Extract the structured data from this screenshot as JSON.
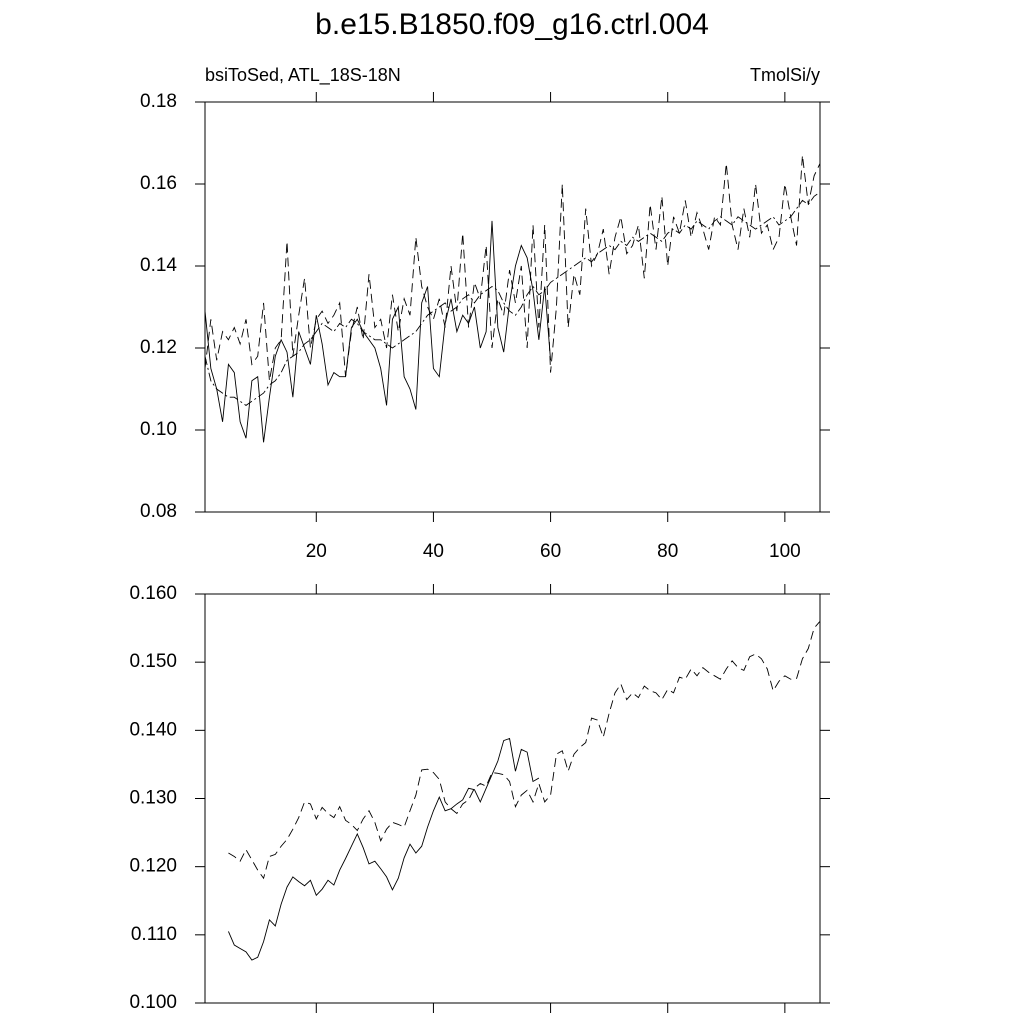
{
  "chart_data": [
    {
      "type": "line",
      "title": "b.e15.B1850.f09_g16.ctrl.004",
      "subtitle_left": "bsiToSed, ATL_18S-18N",
      "subtitle_right": "TmolSi/y",
      "x": [
        1,
        2,
        3,
        4,
        5,
        6,
        7,
        8,
        9,
        10,
        11,
        12,
        13,
        14,
        15,
        16,
        17,
        18,
        19,
        20,
        21,
        22,
        23,
        24,
        25,
        26,
        27,
        28,
        29,
        30,
        31,
        32,
        33,
        34,
        35,
        36,
        37,
        38,
        39,
        40,
        41,
        42,
        43,
        44,
        45,
        46,
        47,
        48,
        49,
        50,
        51,
        52,
        53,
        54,
        55,
        56,
        57,
        58,
        59,
        60,
        61,
        62,
        63,
        64,
        65,
        66,
        67,
        68,
        69,
        70,
        71,
        72,
        73,
        74,
        75,
        76,
        77,
        78,
        79,
        80,
        81,
        82,
        83,
        84,
        85,
        86,
        87,
        88,
        89,
        90,
        91,
        92,
        93,
        94,
        95,
        96,
        97,
        98,
        99,
        100,
        101,
        102,
        103,
        104,
        105,
        106
      ],
      "xlim": [
        1,
        106
      ],
      "xticks": [
        20,
        40,
        60,
        80,
        100
      ],
      "xtick_labels": true,
      "ylim": [
        0.08,
        0.18
      ],
      "yticks": [
        {
          "value": 0.08,
          "label": "0.08"
        },
        {
          "value": 0.1,
          "label": "0.10"
        },
        0.12,
        0.14,
        0.16,
        0.18
      ],
      "series": [
        {
          "color": "#000000",
          "dash": "solid",
          "values": [
            0.129,
            0.115,
            0.11,
            0.102,
            0.116,
            0.114,
            0.102,
            0.098,
            0.112,
            0.113,
            0.097,
            0.108,
            0.118,
            0.122,
            0.119,
            0.108,
            0.124,
            0.12,
            0.116,
            0.128,
            0.121,
            0.111,
            0.114,
            0.113,
            0.113,
            0.125,
            0.127,
            0.124,
            0.122,
            0.12,
            0.115,
            0.106,
            0.127,
            0.13,
            0.113,
            0.11,
            0.105,
            0.131,
            0.135,
            0.115,
            0.113,
            0.126,
            0.132,
            0.124,
            0.128,
            0.126,
            0.13,
            0.12,
            0.124,
            0.151,
            0.125,
            0.119,
            0.131,
            0.14,
            0.145,
            0.142,
            0.134,
            0.122,
            0.135,
            0.117,
            null,
            null,
            null,
            null,
            null,
            null,
            null,
            null,
            null,
            null,
            null,
            null,
            null,
            null,
            null,
            null,
            null,
            null,
            null,
            null,
            null,
            null,
            null,
            null,
            null,
            null,
            null,
            null,
            null,
            null,
            null,
            null,
            null,
            null,
            null,
            null,
            null,
            null,
            null,
            null,
            null,
            null,
            null,
            null,
            null,
            null
          ]
        },
        {
          "color": "#000000",
          "dash": "dashed",
          "values": [
            0.115,
            0.127,
            0.117,
            0.124,
            0.122,
            0.125,
            0.121,
            0.127,
            0.116,
            0.118,
            0.131,
            0.112,
            0.12,
            0.122,
            0.146,
            0.118,
            0.128,
            0.137,
            0.12,
            0.127,
            0.129,
            0.126,
            0.128,
            0.131,
            0.113,
            0.124,
            0.13,
            0.122,
            0.138,
            0.125,
            0.127,
            0.12,
            0.133,
            0.124,
            0.132,
            0.128,
            0.147,
            0.135,
            0.13,
            0.127,
            0.132,
            0.125,
            0.14,
            0.129,
            0.148,
            0.125,
            0.136,
            0.132,
            0.145,
            0.12,
            0.132,
            0.128,
            0.139,
            0.131,
            0.14,
            0.12,
            0.15,
            0.125,
            0.15,
            0.114,
            0.13,
            0.16,
            0.125,
            0.138,
            0.133,
            0.154,
            0.14,
            0.143,
            0.149,
            0.138,
            0.147,
            0.152,
            0.143,
            0.145,
            0.15,
            0.137,
            0.155,
            0.144,
            0.157,
            0.14,
            0.152,
            0.148,
            0.156,
            0.147,
            0.153,
            0.149,
            0.144,
            0.152,
            0.15,
            0.165,
            0.15,
            0.144,
            0.154,
            0.147,
            0.16,
            0.148,
            0.15,
            0.144,
            0.147,
            0.16,
            0.152,
            0.145,
            0.167,
            0.155,
            0.162,
            0.165
          ]
        },
        {
          "color": "#000000",
          "dash": "dashdot",
          "values": [
            0.118,
            0.112,
            0.11,
            0.109,
            0.108,
            0.108,
            0.107,
            0.106,
            0.107,
            0.108,
            0.109,
            0.111,
            0.112,
            0.114,
            0.117,
            0.118,
            0.119,
            0.121,
            0.122,
            0.124,
            0.126,
            0.125,
            0.124,
            0.126,
            0.125,
            0.127,
            0.126,
            0.124,
            0.123,
            0.122,
            0.122,
            0.121,
            0.12,
            0.121,
            0.122,
            0.123,
            0.124,
            0.126,
            0.128,
            0.129,
            0.13,
            0.131,
            0.129,
            0.13,
            0.132,
            0.133,
            0.131,
            0.133,
            0.134,
            0.135,
            0.134,
            0.131,
            0.129,
            0.128,
            0.13,
            0.133,
            0.135,
            0.133,
            0.134,
            0.136,
            0.137,
            0.138,
            0.139,
            0.14,
            0.141,
            0.142,
            0.141,
            0.143,
            0.144,
            0.145,
            0.144,
            0.146,
            0.145,
            0.147,
            0.146,
            0.147,
            0.148,
            0.147,
            0.146,
            0.148,
            0.149,
            0.148,
            0.15,
            0.149,
            0.151,
            0.15,
            0.149,
            0.151,
            0.152,
            0.151,
            0.15,
            0.152,
            0.151,
            0.15,
            0.149,
            0.15,
            0.151,
            0.152,
            0.15,
            0.151,
            0.152,
            0.154,
            0.156,
            0.155,
            0.157,
            0.158
          ]
        }
      ]
    },
    {
      "type": "line",
      "x": [
        1,
        2,
        3,
        4,
        5,
        6,
        7,
        8,
        9,
        10,
        11,
        12,
        13,
        14,
        15,
        16,
        17,
        18,
        19,
        20,
        21,
        22,
        23,
        24,
        25,
        26,
        27,
        28,
        29,
        30,
        31,
        32,
        33,
        34,
        35,
        36,
        37,
        38,
        39,
        40,
        41,
        42,
        43,
        44,
        45,
        46,
        47,
        48,
        49,
        50,
        51,
        52,
        53,
        54,
        55,
        56,
        57,
        58,
        59,
        60,
        61,
        62,
        63,
        64,
        65,
        66,
        67,
        68,
        69,
        70,
        71,
        72,
        73,
        74,
        75,
        76,
        77,
        78,
        79,
        80,
        81,
        82,
        83,
        84,
        85,
        86,
        87,
        88,
        89,
        90,
        91,
        92,
        93,
        94,
        95,
        96,
        97,
        98,
        99,
        100,
        101,
        102,
        103,
        104,
        105,
        106
      ],
      "xlim": [
        1,
        106
      ],
      "xticks": [
        20,
        40,
        60,
        80,
        100
      ],
      "xtick_labels": false,
      "ylim": [
        0.1,
        0.16
      ],
      "yticks": [
        {
          "value": 0.1,
          "label": "0.100"
        },
        {
          "value": 0.11,
          "label": "0.110"
        },
        {
          "value": 0.12,
          "label": "0.120"
        },
        {
          "value": 0.13,
          "label": "0.130"
        },
        {
          "value": 0.14,
          "label": "0.140"
        },
        {
          "value": 0.15,
          "label": "0.150"
        },
        {
          "value": 0.16,
          "label": "0.160"
        }
      ],
      "series": [
        {
          "color": "#000000",
          "dash": "solid",
          "values": [
            null,
            null,
            null,
            null,
            0.1105,
            0.1085,
            0.108,
            0.1075,
            0.1063,
            0.1067,
            0.109,
            0.1122,
            0.1113,
            0.1145,
            0.117,
            0.1185,
            0.1178,
            0.1172,
            0.118,
            0.1158,
            0.1167,
            0.118,
            0.1173,
            0.1195,
            0.1212,
            0.123,
            0.1248,
            0.1228,
            0.1204,
            0.1208,
            0.1197,
            0.1185,
            0.1166,
            0.1183,
            0.1213,
            0.1233,
            0.122,
            0.123,
            0.1258,
            0.1282,
            0.1302,
            0.1282,
            0.1285,
            0.1292,
            0.1298,
            0.1315,
            0.1313,
            0.1295,
            0.1315,
            0.1335,
            0.1355,
            0.1385,
            0.1388,
            0.134,
            0.1372,
            0.1368,
            0.1325,
            0.133,
            null,
            null,
            null,
            null,
            null,
            null,
            null,
            null,
            null,
            null,
            null,
            null,
            null,
            null,
            null,
            null,
            null,
            null,
            null,
            null,
            null,
            null,
            null,
            null,
            null,
            null,
            null,
            null,
            null,
            null,
            null,
            null,
            null,
            null,
            null,
            null,
            null,
            null,
            null,
            null,
            null,
            null,
            null,
            null,
            null,
            null,
            null,
            null
          ]
        },
        {
          "color": "#000000",
          "dash": "dashed",
          "values": [
            null,
            null,
            null,
            null,
            0.122,
            0.1215,
            0.1208,
            0.1225,
            0.121,
            0.1195,
            0.1183,
            0.1215,
            0.1218,
            0.123,
            0.124,
            0.1255,
            0.1272,
            0.1295,
            0.1292,
            0.127,
            0.1287,
            0.1278,
            0.1272,
            0.1288,
            0.1268,
            0.1262,
            0.1253,
            0.127,
            0.1282,
            0.1265,
            0.1238,
            0.1255,
            0.1265,
            0.1262,
            0.1258,
            0.1282,
            0.1305,
            0.1342,
            0.1343,
            0.1338,
            0.1328,
            0.1295,
            0.1285,
            0.1278,
            0.1292,
            0.1298,
            0.1315,
            0.1322,
            0.1318,
            0.1338,
            0.1337,
            0.1335,
            0.1325,
            0.1288,
            0.1305,
            0.1312,
            0.1295,
            0.1322,
            0.1295,
            0.1305,
            0.1365,
            0.137,
            0.134,
            0.1365,
            0.1375,
            0.1382,
            0.1418,
            0.1415,
            0.139,
            0.1425,
            0.1455,
            0.1468,
            0.1445,
            0.1455,
            0.1448,
            0.1465,
            0.1458,
            0.1455,
            0.1445,
            0.146,
            0.1455,
            0.1478,
            0.1475,
            0.149,
            0.148,
            0.1492,
            0.1485,
            0.148,
            0.1475,
            0.149,
            0.1502,
            0.1492,
            0.1488,
            0.1508,
            0.1512,
            0.1505,
            0.149,
            0.1458,
            0.1472,
            0.148,
            0.1475,
            0.1476,
            0.1505,
            0.152,
            0.155,
            0.156
          ]
        }
      ]
    }
  ]
}
